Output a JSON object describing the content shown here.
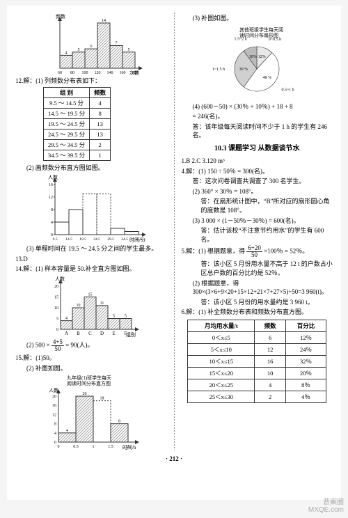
{
  "left": {
    "hist1": {
      "ylabel": "频数",
      "xlabel": "次数",
      "xticks": [
        60,
        80,
        100,
        120,
        140,
        160,
        180
      ],
      "bars": [
        4,
        5,
        6,
        14,
        7,
        5
      ],
      "bar_color": "#ffffff",
      "edge_color": "#3a3a3a",
      "hatch": true,
      "value_labels": [
        "4",
        "5",
        "6",
        "14",
        "7",
        "5"
      ]
    },
    "q12_intro": "12.解：(1) 列频数分布表如下：",
    "q12_table": {
      "head": [
        "组 别",
        "频数"
      ],
      "rows": [
        [
          "9.5 ～ 14.5 分",
          "4"
        ],
        [
          "14.5 ～ 19.5 分",
          "8"
        ],
        [
          "19.5 ～ 24.5 分",
          "13"
        ],
        [
          "24.5 ～ 29.5 分",
          "13"
        ],
        [
          "29.5 ～ 34.5 分",
          "2"
        ],
        [
          "34.5 ～ 39.5 分",
          "1"
        ]
      ]
    },
    "q12_2": "(2) 画频数分布直方图如图。",
    "hist2": {
      "ylabel": "人数",
      "xlabel": "时间/分",
      "xticks": [
        "9.5",
        "14.5",
        "19.5",
        "24.5",
        "29.5",
        "34.5",
        "39.5"
      ],
      "yticks": [
        0,
        4,
        8,
        12,
        16
      ],
      "bars": [
        4,
        8,
        13,
        13,
        2,
        1
      ],
      "dashed_bars": [
        2,
        3
      ],
      "edge_color": "#3a3a3a"
    },
    "q12_3": "(3) 单程时间在 19.5 ～ 24.5 分之间的学生最多。",
    "q13": "13.D",
    "q14": "14.解：(1) 样本容量是 50.补全直方图如图。",
    "hist3": {
      "ylabel": "人数",
      "xlabel": "组别",
      "xticks": [
        "A",
        "B",
        "C",
        "D",
        "E",
        "F"
      ],
      "yticks": [
        0,
        5,
        10,
        15,
        20
      ],
      "bars": [
        4,
        10,
        15,
        11,
        5,
        5
      ],
      "value_labels": [
        "4",
        "10",
        "15",
        "11",
        "5",
        "5"
      ],
      "edge_color": "#3a3a3a",
      "hatch": true
    },
    "q14_2a": "(2) 500 × ",
    "q14_2b": " = 90(人)。",
    "q14_frac_t": "4+5",
    "q14_frac_b": "50",
    "q15_1": "15.解：(1)50。",
    "q15_2": "(2) 补图如图。",
    "hist4": {
      "title": "九年级(1)班学生每天\n阅读时间分布直方图",
      "ylabel": "人数",
      "xlabel": "时间/h",
      "xticks": [
        "0",
        "0.5",
        "1",
        "1.5",
        "2"
      ],
      "yticks": [
        0,
        4,
        8,
        12,
        16,
        20
      ],
      "bars": [
        4,
        20,
        18,
        8
      ],
      "value_labels": [
        "4",
        "20",
        "18",
        "8"
      ],
      "dashed_idx": 2,
      "edge_color": "#3a3a3a",
      "hatch": true
    }
  },
  "right": {
    "q15_3": "(3) 补图如图。",
    "pie": {
      "title": "其他班级学生每天阅\n读时间分布扇形图",
      "slices": [
        {
          "label": "0~0.5 h",
          "angle_start": -90,
          "angle_end": -46.8,
          "pct": "12%",
          "color": "#e8e8e8"
        },
        {
          "label": "0.5~1 h",
          "angle_start": -46.8,
          "angle_end": 126,
          "pct": "48 %",
          "color": "#ffffff"
        },
        {
          "label": "1~1.5 h",
          "angle_start": 126,
          "angle_end": 234,
          "pct": "30 %",
          "color": "#d0d0d0"
        },
        {
          "label": "1.5~2 h",
          "angle_start": 234,
          "angle_end": 270,
          "pct": "10%",
          "color": "#bcbcbc"
        }
      ]
    },
    "q15_4a": "(4) (600－50) × (30％ + 10％) + 18 + 8",
    "q15_4b": "    = 246(名)。",
    "q15_ans": "答：该年级每天阅读时间不少于 1 h 的学生有 246 名。",
    "sec_title": "10.3  课题学习  从数据谈节水",
    "line1": "1.B  2.C  3.120 m³",
    "q4_1": "4.解：(1) 150 ÷ 50％ = 300(名)。",
    "q4_1a": "答：这次问卷调查共调查了 300 名学生。",
    "q4_2": "(2) 360° × 30％ = 108°。",
    "q4_2a": "答：在扇形统计图中，“B”所对应的扇形圆心角的度数是 108°。",
    "q4_3": "(3) 3 000 × (1－50％－30％) = 600(名)。",
    "q4_3a": "答：估计该校“不注意节约用水”的学生有 600 名。",
    "q5_1a": "5.解：(1) 根据题意，得",
    "q5_frac_t": "6+20",
    "q5_frac_b": "50",
    "q5_1b": " ×100％ = 52％。",
    "q5_1ans": "答：该小区 5 月份用水量不高于 12 t 的户数占小区总户数的百分比约是 52％。",
    "q5_2": "(2) 根据题意，得 300×(3×6+9×20+15×12+21×7+27×5)÷50=3 960(t)。",
    "q5_2ans": "答：该小区 5 月份的用水量约是 3 960 t。",
    "q6_1": "6.解：(1) 补全频数分布表和频数分布直方图。",
    "q6_table": {
      "head": [
        "月均用水量/t",
        "频数",
        "百分比"
      ],
      "rows": [
        [
          "0＜x≤5",
          "6",
          "12％"
        ],
        [
          "5＜x≤10",
          "12",
          "24％"
        ],
        [
          "10＜x≤15",
          "16",
          "32％"
        ],
        [
          "15＜x≤20",
          "10",
          "20％"
        ],
        [
          "20＜x≤25",
          "4",
          "8％"
        ],
        [
          "25＜x≤30",
          "2",
          "4％"
        ]
      ]
    }
  },
  "page_num": "· 212 ·",
  "watermark1": "昔案圈",
  "watermark2": "MXQE.com"
}
